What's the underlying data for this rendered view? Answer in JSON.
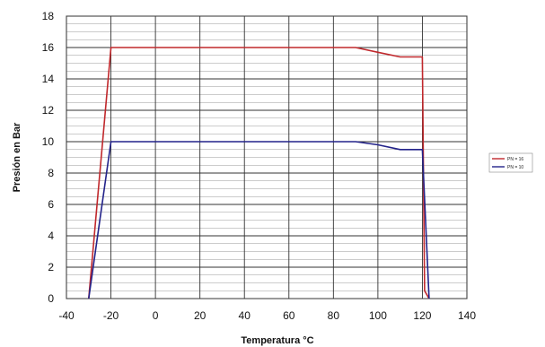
{
  "chart_data": {
    "type": "line",
    "title": "",
    "xlabel": "Temperatura °C",
    "ylabel": "Presión en Bar",
    "xlim": [
      -40,
      140
    ],
    "ylim": [
      0,
      18
    ],
    "x_ticks": [
      -40,
      -20,
      0,
      20,
      40,
      60,
      80,
      100,
      120,
      140
    ],
    "y_ticks": [
      0,
      2,
      4,
      6,
      8,
      10,
      12,
      14,
      16,
      18
    ],
    "grid": true,
    "legend_position": "right",
    "series": [
      {
        "name": "PN = 16",
        "color": "#c0282c",
        "points": [
          [
            -30,
            0
          ],
          [
            -20,
            16
          ],
          [
            90,
            16
          ],
          [
            100,
            15.7
          ],
          [
            110,
            15.4
          ],
          [
            120,
            15.4
          ],
          [
            121,
            0.5
          ],
          [
            123,
            0
          ]
        ]
      },
      {
        "name": "PN = 10",
        "color": "#23238a",
        "points": [
          [
            -30,
            0
          ],
          [
            -20,
            10
          ],
          [
            90,
            10
          ],
          [
            100,
            9.8
          ],
          [
            110,
            9.5
          ],
          [
            120,
            9.5
          ],
          [
            123,
            0
          ]
        ]
      }
    ]
  }
}
